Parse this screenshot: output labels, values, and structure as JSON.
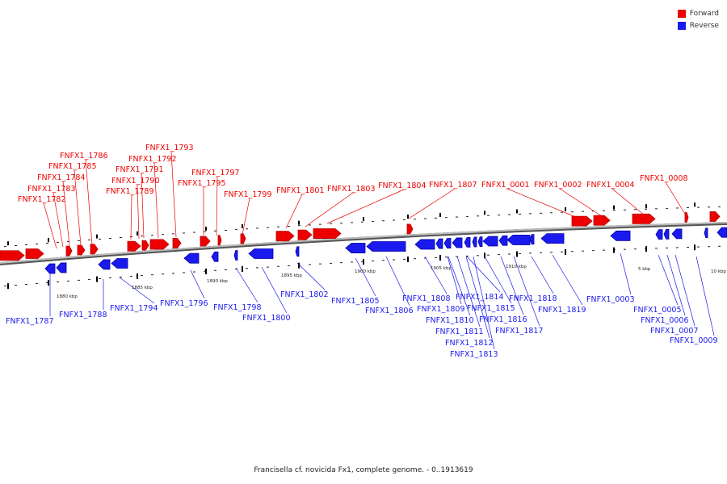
{
  "colors": {
    "forward": "#ee0000",
    "forward_dark": "#b80000",
    "reverse": "#1a1aee",
    "reverse_dark": "#0000a8",
    "backbone": "#888888",
    "tick": "#000000"
  },
  "legend": [
    {
      "label": "Forward",
      "color": "#ee0000"
    },
    {
      "label": "Reverse",
      "color": "#1a1aee"
    }
  ],
  "caption": "Francisella cf. novicida Fx1, complete genome. - 0..1913619",
  "scale_labels": [
    "1880 kbp",
    "1885 kbp",
    "1890 kbp",
    "1895 kbp",
    "1900 kbp",
    "1905 kbp",
    "1910 kbp",
    "5 kbp",
    "10 kbp"
  ],
  "forward_genes": [
    "FNFX1_1782",
    "FNFX1_1783",
    "FNFX1_1784",
    "FNFX1_1785",
    "FNFX1_1786",
    "FNFX1_1789",
    "FNFX1_1790",
    "FNFX1_1791",
    "FNFX1_1792",
    "FNFX1_1793",
    "FNFX1_1795",
    "FNFX1_1797",
    "FNFX1_1799",
    "FNFX1_1801",
    "FNFX1_1803",
    "FNFX1_1804",
    "FNFX1_1807",
    "FNFX1_0001",
    "FNFX1_0002",
    "FNFX1_0004",
    "FNFX1_0008"
  ],
  "reverse_genes": [
    "FNFX1_1787",
    "FNFX1_1788",
    "FNFX1_1794",
    "FNFX1_1796",
    "FNFX1_1798",
    "FNFX1_1800",
    "FNFX1_1802",
    "FNFX1_1805",
    "FNFX1_1806",
    "FNFX1_1808",
    "FNFX1_1809",
    "FNFX1_1810",
    "FNFX1_1811",
    "FNFX1_1812",
    "FNFX1_1813",
    "FNFX1_1814",
    "FNFX1_1815",
    "FNFX1_1816",
    "FNFX1_1817",
    "FNFX1_1818",
    "FNFX1_1819",
    "FNFX1_0003",
    "FNFX1_0005",
    "FNFX1_0006",
    "FNFX1_0007",
    "FNFX1_0009"
  ]
}
